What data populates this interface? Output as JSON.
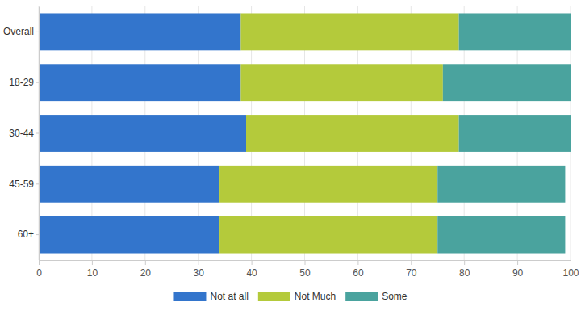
{
  "chart_data": {
    "type": "bar",
    "orientation": "horizontal",
    "stacked": true,
    "grid": true,
    "legend": "bottom",
    "categories": [
      "Overall",
      "18-29",
      "30-44",
      "45-59",
      "60+"
    ],
    "series": [
      {
        "name": "Not at all",
        "color": "#3375cc",
        "values": [
          38,
          38,
          39,
          34,
          34
        ]
      },
      {
        "name": "Not Much",
        "color": "#b4ca3b",
        "values": [
          41,
          38,
          40,
          41,
          41
        ]
      },
      {
        "name": "Some",
        "color": "#4aa39e",
        "values": [
          21,
          24,
          21,
          24,
          24
        ]
      }
    ],
    "xlim": [
      0,
      100
    ],
    "xticks": [
      0,
      10,
      20,
      30,
      40,
      50,
      60,
      70,
      80,
      90,
      100
    ]
  }
}
